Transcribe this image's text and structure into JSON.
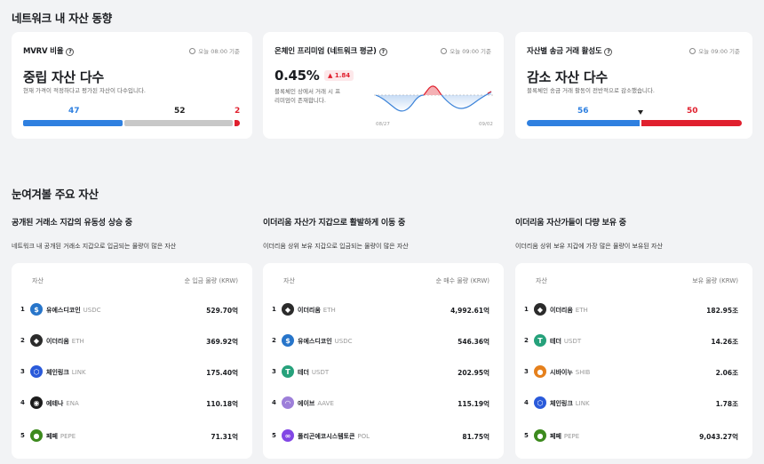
{
  "section1_title": "네트워크 내 자산 동향",
  "cards": [
    {
      "title": "MVRV 비율",
      "time": "오늘 08:00 기준",
      "headline": "중립 자산 다수",
      "description": "현재 가격이 적정하다고 평가된 자산이 다수입니다.",
      "values": [
        "47",
        "52",
        "2"
      ],
      "colors": [
        "#2f80e0",
        "#c8c8c8",
        "#e0202e"
      ]
    },
    {
      "title": "온체인 프리미엄 (네트워크 평균)",
      "time": "오늘 09:00 기준",
      "headline": "0.45%",
      "change": "▲ 1.84",
      "description_line1": "블록체인 상에서 거래 시 프",
      "description_line2": "리미엄이 존재합니다.",
      "x_start": "08/27",
      "x_end": "09/02"
    },
    {
      "title": "자산별 송금 거래 활성도",
      "time": "오늘 09:00 기준",
      "headline": "감소 자산 다수",
      "description": "블록체인 송금 거래 활동이 전반적으로 감소했습니다.",
      "values": [
        "56",
        "50"
      ],
      "colors": [
        "#2f80e0",
        "#e0202e"
      ]
    }
  ],
  "section2_title": "눈여겨볼 주요 자산",
  "groups": [
    {
      "title": "공개된 거래소 지갑의 유동성 상승 중",
      "description": "네트워크 내 공개된 거래소 지갑으로 입금되는 물량이 많은 자산",
      "col_asset": "자산",
      "col_amount": "순 입금 물량 (KRW)",
      "rows": [
        {
          "rank": "1",
          "name": "유에스디코인",
          "symbol": "USDC",
          "value": "529.70억",
          "icon": "usdc-icon",
          "color": "#2775ca",
          "glyph": "$"
        },
        {
          "rank": "2",
          "name": "이더리움",
          "symbol": "ETH",
          "value": "369.92억",
          "icon": "ethereum-icon",
          "color": "#2b2b2b",
          "glyph": "◆"
        },
        {
          "rank": "3",
          "name": "체인링크",
          "symbol": "LINK",
          "value": "175.40억",
          "icon": "chainlink-icon",
          "color": "#2a5ada",
          "glyph": "⬡"
        },
        {
          "rank": "4",
          "name": "에테나",
          "symbol": "ENA",
          "value": "110.18억",
          "icon": "ethena-icon",
          "color": "#1c1c1c",
          "glyph": "◉"
        },
        {
          "rank": "5",
          "name": "페페",
          "symbol": "PEPE",
          "value": "71.31억",
          "icon": "pepe-icon",
          "color": "#3d8a1e",
          "glyph": "●"
        }
      ]
    },
    {
      "title": "이더리움 자산가 지갑으로 활발하게 이동 중",
      "description": "이더리움 상위 보유 지갑으로 입금되는 물량이 많은 자산",
      "col_asset": "자산",
      "col_amount": "순 매수 물량 (KRW)",
      "rows": [
        {
          "rank": "1",
          "name": "이더리움",
          "symbol": "ETH",
          "value": "4,992.61억",
          "icon": "ethereum-icon",
          "color": "#2b2b2b",
          "glyph": "◆"
        },
        {
          "rank": "2",
          "name": "유에스디코인",
          "symbol": "USDC",
          "value": "546.36억",
          "icon": "usdc-icon",
          "color": "#2775ca",
          "glyph": "$"
        },
        {
          "rank": "3",
          "name": "테더",
          "symbol": "USDT",
          "value": "202.95억",
          "icon": "tether-icon",
          "color": "#26a17b",
          "glyph": "T"
        },
        {
          "rank": "4",
          "name": "에이브",
          "symbol": "AAVE",
          "value": "115.19억",
          "icon": "aave-icon",
          "color": "#9d7fd9",
          "glyph": "◠"
        },
        {
          "rank": "5",
          "name": "폴리곤에코시스템토큰",
          "symbol": "POL",
          "value": "81.75억",
          "icon": "polygon-icon",
          "color": "#8247e5",
          "glyph": "∞"
        }
      ]
    },
    {
      "title": "이더리움 자산가들이 다량 보유 중",
      "description": "이더리움 상위 보유 지갑에 가장 많은 물량이 보유된 자산",
      "col_asset": "자산",
      "col_amount": "보유 물량 (KRW)",
      "rows": [
        {
          "rank": "1",
          "name": "이더리움",
          "symbol": "ETH",
          "value": "182.95조",
          "icon": "ethereum-icon",
          "color": "#2b2b2b",
          "glyph": "◆"
        },
        {
          "rank": "2",
          "name": "테더",
          "symbol": "USDT",
          "value": "14.26조",
          "icon": "tether-icon",
          "color": "#26a17b",
          "glyph": "T"
        },
        {
          "rank": "3",
          "name": "시바이누",
          "symbol": "SHIB",
          "value": "2.06조",
          "icon": "shiba-icon",
          "color": "#e5801c",
          "glyph": "●"
        },
        {
          "rank": "4",
          "name": "체인링크",
          "symbol": "LINK",
          "value": "1.78조",
          "icon": "chainlink-icon",
          "color": "#2a5ada",
          "glyph": "⬡"
        },
        {
          "rank": "5",
          "name": "페페",
          "symbol": "PEPE",
          "value": "9,043.27억",
          "icon": "pepe-icon",
          "color": "#3d8a1e",
          "glyph": "●"
        }
      ]
    }
  ]
}
